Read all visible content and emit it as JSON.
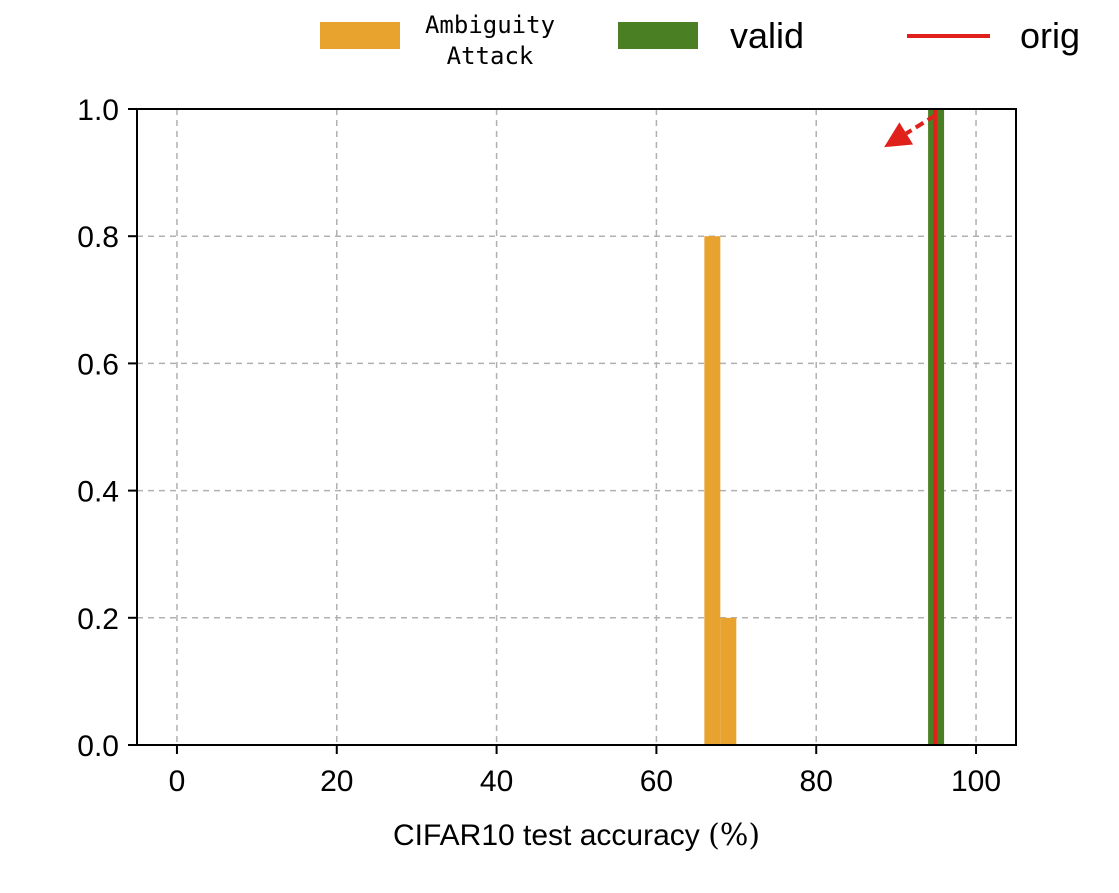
{
  "chart_data": {
    "type": "bar",
    "xlabel": "CIFAR10 test accuracy",
    "xlabel_unit": "(%)",
    "ylabel": "",
    "xlim": [
      -5,
      105
    ],
    "ylim": [
      0,
      1.0
    ],
    "xticks": [
      0,
      20,
      40,
      60,
      80,
      100
    ],
    "yticks": [
      0.0,
      0.2,
      0.4,
      0.6,
      0.8,
      1.0
    ],
    "xtick_labels": [
      "0",
      "20",
      "40",
      "60",
      "80",
      "100"
    ],
    "ytick_labels": [
      "0.0",
      "0.2",
      "0.4",
      "0.6",
      "0.8",
      "1.0"
    ],
    "grid": true,
    "legend_placement": "top",
    "series": [
      {
        "name": "Ambiguity Attack",
        "name_lines": [
          "Ambiguity",
          "Attack"
        ],
        "kind": "histogram",
        "color": "#E8A22E",
        "bins": [
          {
            "x0": 66,
            "x1": 68,
            "value": 0.8
          },
          {
            "x0": 68,
            "x1": 70,
            "value": 0.2
          }
        ]
      },
      {
        "name": "valid",
        "kind": "histogram",
        "color": "#4A7F24",
        "bins": [
          {
            "x0": 94,
            "x1": 96,
            "value": 1.0
          }
        ]
      },
      {
        "name": "orig",
        "kind": "vline",
        "color": "#E0201B",
        "x": 94.9
      }
    ],
    "annotations": [
      {
        "kind": "arrow",
        "color": "#E0201B",
        "from": [
          94.9,
          0.99
        ],
        "to": [
          88.5,
          0.94
        ]
      }
    ]
  }
}
